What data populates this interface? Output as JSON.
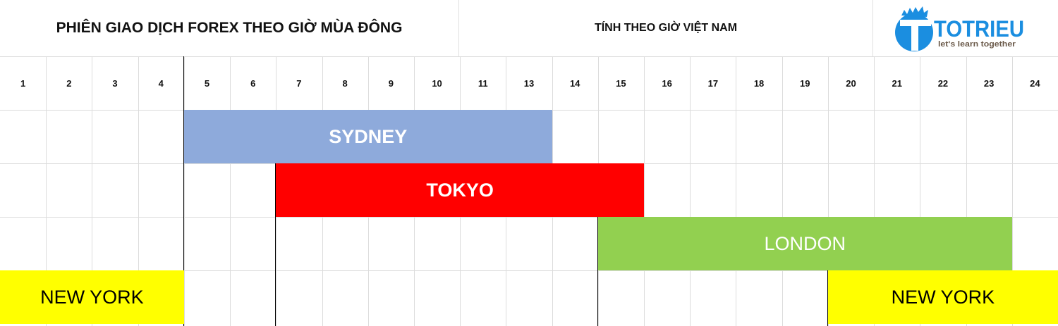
{
  "header": {
    "title": "PHIÊN GIAO DỊCH FOREX THEO GIỜ MÙA ĐÔNG",
    "subtitle": "TÍNH THEO GIỜ VIỆT NAM",
    "logo": {
      "name": "TOTRIEU",
      "tagline": "let's learn together",
      "color": "#1b8ee0",
      "tagline_color": "#6b5a4a"
    }
  },
  "hours": [
    "1",
    "2",
    "3",
    "4",
    "5",
    "6",
    "7",
    "8",
    "9",
    "10",
    "11",
    "13",
    "14",
    "15",
    "16",
    "17",
    "18",
    "19",
    "20",
    "21",
    "22",
    "23",
    "24"
  ],
  "sessions": [
    {
      "label": "SYDNEY",
      "from": "5",
      "to": "13",
      "color": "#8eaadb",
      "text_color": "#ffffff",
      "bold": true
    },
    {
      "label": "TOKYO",
      "from": "7",
      "to": "15",
      "color": "#ff0000",
      "text_color": "#ffffff",
      "bold": true
    },
    {
      "label": "LONDON",
      "from": "15",
      "to": "23",
      "color": "#92d050",
      "text_color": "#ffffff",
      "bold": false
    },
    {
      "label": "NEW YORK",
      "from": "1",
      "to": "4",
      "color": "#ffff00",
      "text_color": "#000000",
      "bold": false
    },
    {
      "label": "NEW YORK",
      "from": "20",
      "to": "24",
      "color": "#ffff00",
      "text_color": "#000000",
      "bold": false
    }
  ]
}
